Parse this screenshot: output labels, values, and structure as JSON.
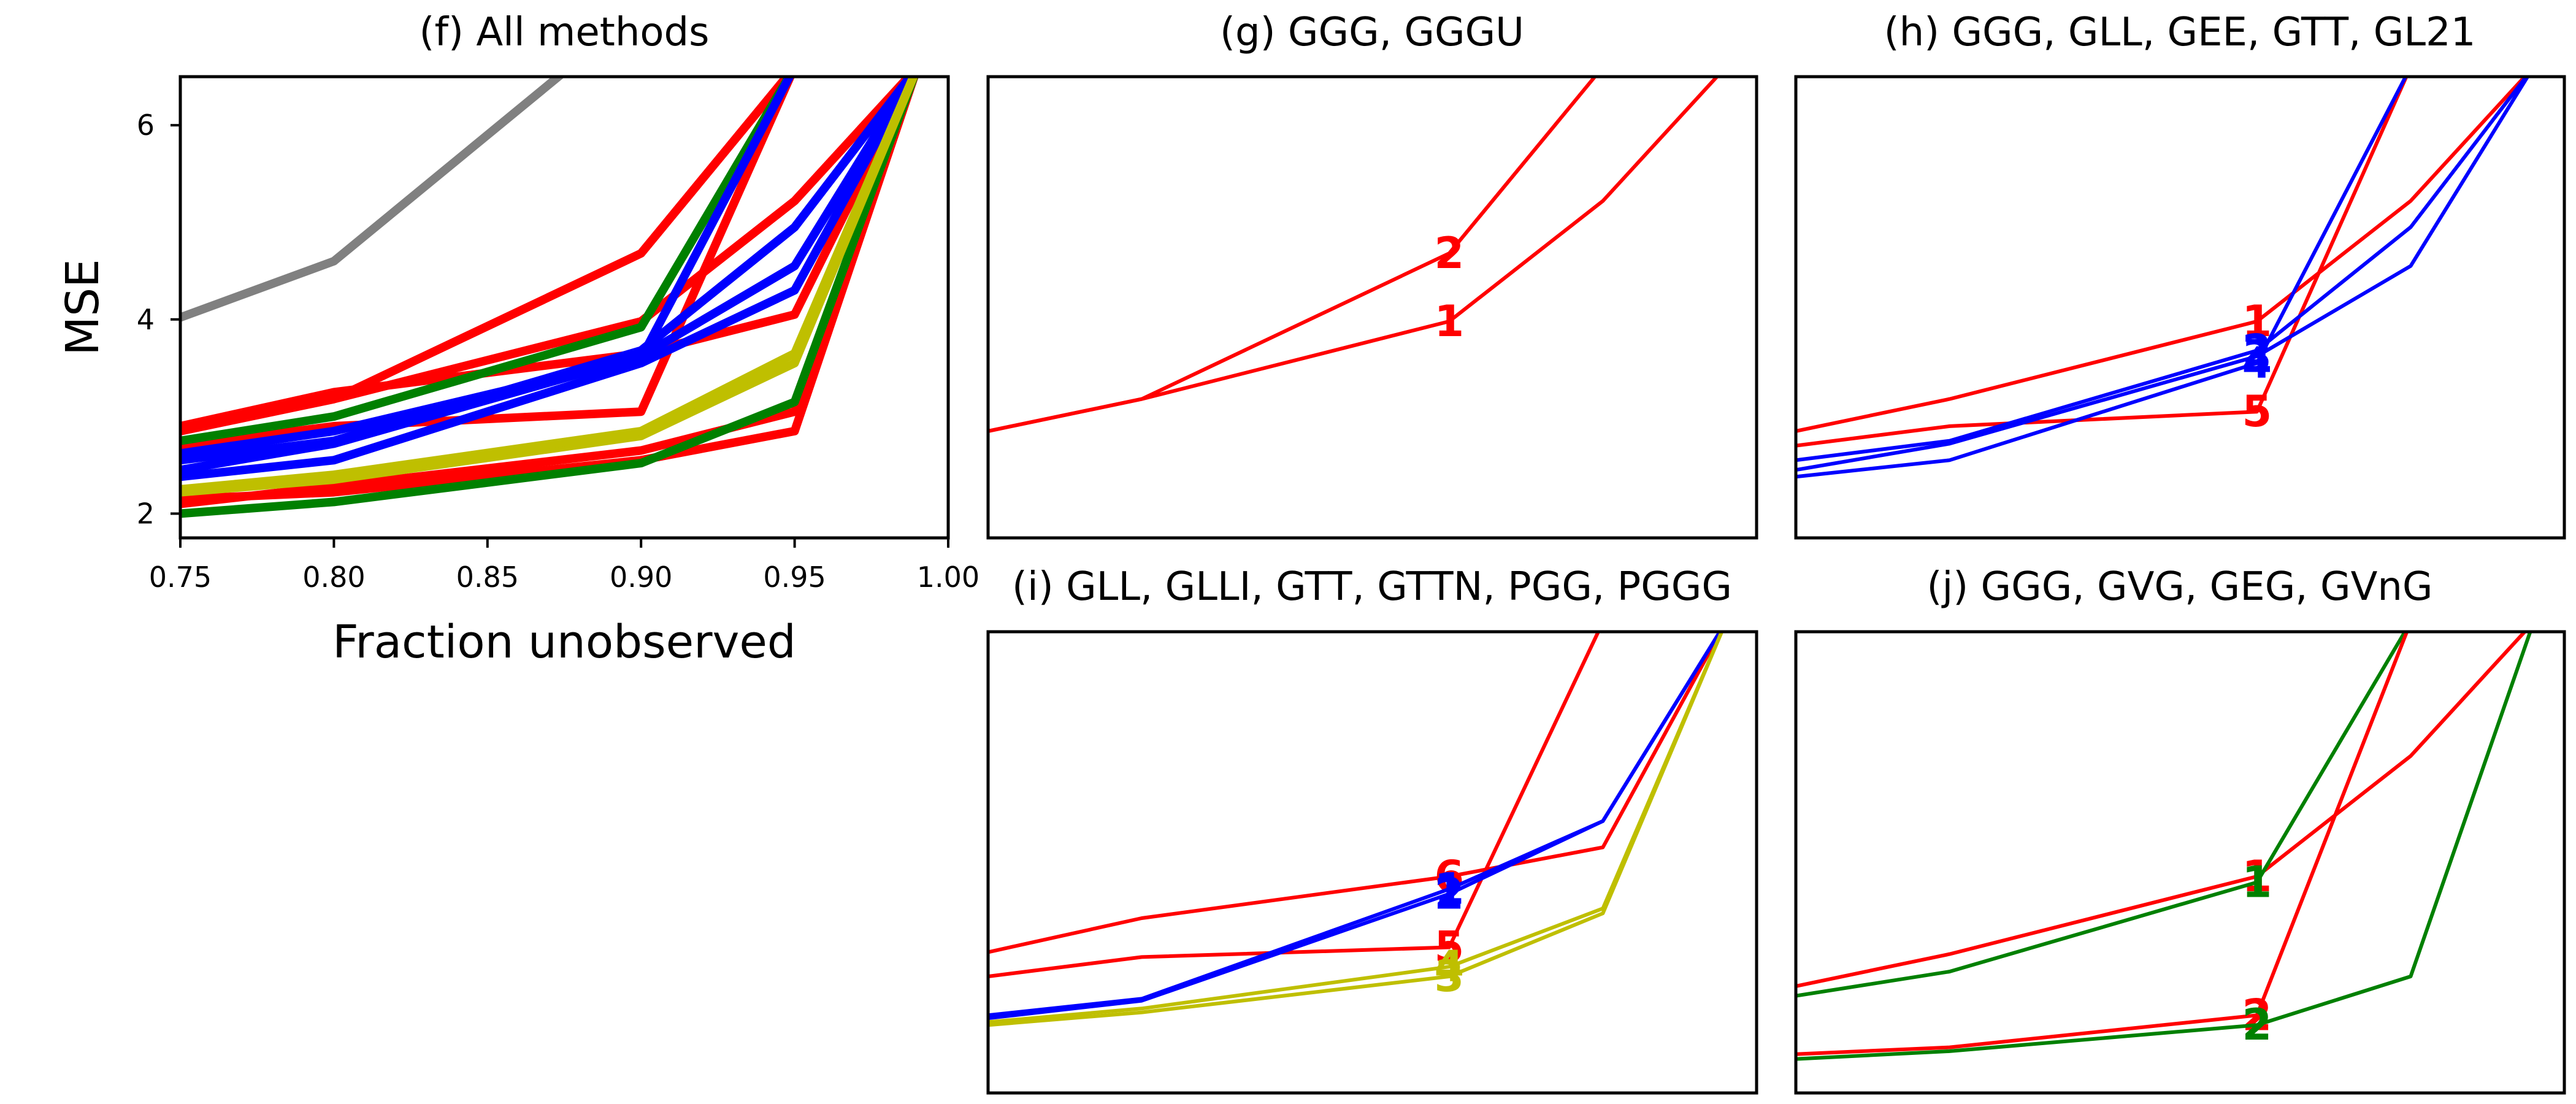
{
  "colors": {
    "red": "#ff0000",
    "blue": "#0000ff",
    "green": "#008000",
    "olive": "#bfbf00",
    "gray": "#808080"
  },
  "chart_data": [
    {
      "type": "line",
      "title": "(f) All methods",
      "xlabel": "Fraction unobserved",
      "ylabel": "MSE",
      "xlim": [
        0.75,
        1.0
      ],
      "ylim": [
        1.75,
        6.5
      ],
      "xticks": [
        "0.75",
        "0.80",
        "0.85",
        "0.90",
        "0.95",
        "1.00"
      ],
      "yticks": [
        "2",
        "4",
        "6"
      ],
      "x": [
        0.75,
        0.8,
        0.9,
        0.95,
        0.99
      ],
      "series": [
        {
          "color": "gray",
          "values": [
            4.02,
            4.6,
            7.2,
            null,
            null
          ]
        },
        {
          "color": "red",
          "values": [
            2.85,
            3.18,
            3.98,
            5.22,
            6.6
          ]
        },
        {
          "color": "red",
          "values": [
            2.85,
            3.18,
            4.68,
            6.6,
            null
          ]
        },
        {
          "color": "red",
          "values": [
            2.7,
            2.9,
            3.05,
            6.6,
            null
          ]
        },
        {
          "color": "red",
          "values": [
            2.9,
            3.25,
            3.65,
            4.05,
            6.6
          ]
        },
        {
          "color": "red",
          "values": [
            2.15,
            2.22,
            2.55,
            2.85,
            6.6
          ]
        },
        {
          "color": "red",
          "values": [
            2.1,
            2.28,
            2.65,
            3.05,
            6.6
          ]
        },
        {
          "color": "green",
          "values": [
            2.75,
            3.0,
            3.92,
            6.6,
            null
          ]
        },
        {
          "color": "green",
          "values": [
            2.0,
            2.12,
            2.52,
            3.15,
            6.6
          ]
        },
        {
          "color": "blue",
          "values": [
            2.55,
            2.75,
            3.68,
            4.95,
            6.6
          ]
        },
        {
          "color": "blue",
          "values": [
            2.45,
            2.72,
            3.62,
            4.55,
            6.6
          ]
        },
        {
          "color": "blue",
          "values": [
            2.38,
            2.55,
            3.55,
            4.3,
            6.6
          ]
        },
        {
          "color": "blue",
          "values": [
            2.62,
            2.85,
            3.6,
            6.6,
            null
          ]
        },
        {
          "color": "olive",
          "values": [
            2.22,
            2.35,
            2.8,
            3.55,
            6.6
          ]
        },
        {
          "color": "olive",
          "values": [
            2.25,
            2.4,
            2.85,
            3.65,
            6.6
          ]
        }
      ]
    },
    {
      "type": "line",
      "title": "(g) GGG, GGGU",
      "x": [
        0.75,
        0.8,
        0.9,
        0.95,
        0.99
      ],
      "series": [
        {
          "color": "red",
          "marker": "1",
          "values": [
            2.85,
            3.18,
            3.98,
            5.22,
            6.6
          ]
        },
        {
          "color": "red",
          "marker": "2",
          "values": [
            2.85,
            3.18,
            4.68,
            6.6,
            null
          ]
        }
      ]
    },
    {
      "type": "line",
      "title": "(h) GGG, GLL, GEE, GTT, GL21",
      "x": [
        0.75,
        0.8,
        0.9,
        0.95,
        0.99
      ],
      "series": [
        {
          "color": "red",
          "marker": "1",
          "values": [
            2.85,
            3.18,
            3.98,
            5.22,
            6.6
          ]
        },
        {
          "color": "red",
          "marker": "5",
          "values": [
            2.7,
            2.9,
            3.05,
            6.6,
            null
          ]
        },
        {
          "color": "blue",
          "marker": "2",
          "values": [
            2.55,
            2.75,
            3.68,
            4.95,
            6.6
          ]
        },
        {
          "color": "blue",
          "marker": "3",
          "values": [
            2.45,
            2.72,
            3.62,
            4.55,
            6.6
          ]
        },
        {
          "color": "blue",
          "marker": "4",
          "values": [
            2.38,
            2.55,
            3.55,
            6.6,
            null
          ]
        }
      ]
    },
    {
      "type": "line",
      "title": "(i) GLL, GLLI, GTT, GTTN, PGG, PGGG",
      "x": [
        0.75,
        0.8,
        0.9,
        0.95,
        0.99
      ],
      "series": [
        {
          "color": "red",
          "marker": "6",
          "values": [
            3.2,
            3.55,
            3.98,
            4.28,
            6.6
          ]
        },
        {
          "color": "red",
          "marker": "5",
          "values": [
            2.95,
            3.15,
            3.25,
            6.6,
            null
          ]
        },
        {
          "color": "blue",
          "marker": "1",
          "values": [
            2.55,
            2.72,
            3.85,
            4.55,
            6.6
          ]
        },
        {
          "color": "blue",
          "marker": "2",
          "values": [
            2.52,
            2.7,
            3.8,
            4.55,
            6.6
          ]
        },
        {
          "color": "olive",
          "marker": "3",
          "values": [
            2.45,
            2.58,
            2.95,
            3.6,
            6.6
          ]
        },
        {
          "color": "olive",
          "marker": "4",
          "values": [
            2.48,
            2.62,
            3.05,
            3.65,
            6.6
          ]
        }
      ]
    },
    {
      "type": "line",
      "title": "(j) GGG, GVG, GEG, GVnG",
      "x": [
        0.75,
        0.8,
        0.9,
        0.95,
        0.99
      ],
      "series": [
        {
          "color": "red",
          "marker": "1",
          "values": [
            2.85,
            3.18,
            3.98,
            5.22,
            6.6
          ]
        },
        {
          "color": "green",
          "marker": "1",
          "values": [
            2.75,
            3.0,
            3.92,
            6.6,
            null
          ]
        },
        {
          "color": "red",
          "marker": "2",
          "values": [
            2.15,
            2.22,
            2.55,
            6.6,
            null
          ]
        },
        {
          "color": "green",
          "marker": "2",
          "values": [
            2.1,
            2.18,
            2.45,
            2.95,
            6.6
          ]
        }
      ]
    }
  ]
}
